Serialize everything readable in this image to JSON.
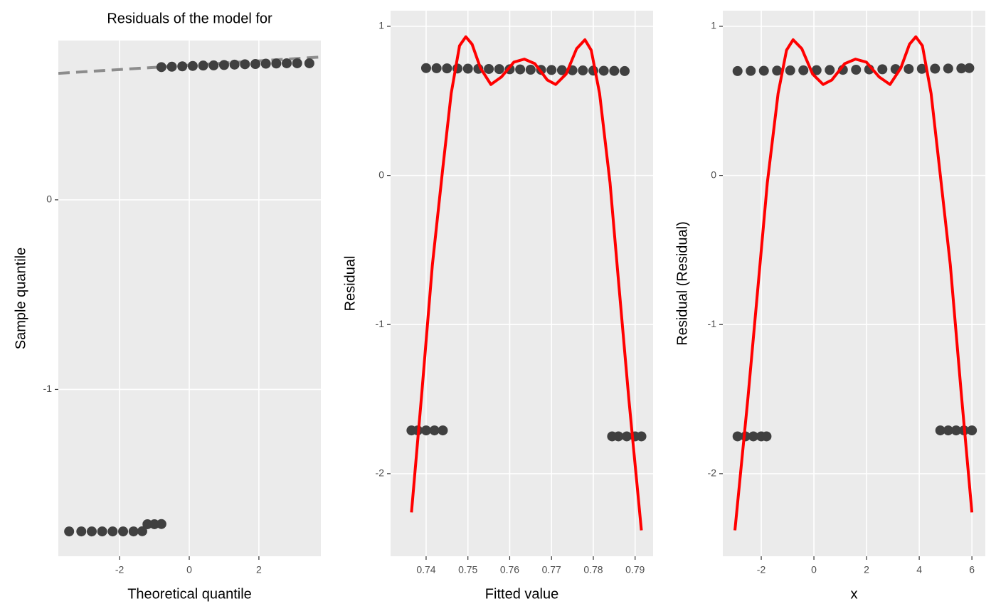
{
  "chart_data": [
    {
      "type": "scatter",
      "title": "Residuals of the model for",
      "x_label": "Theoretical quantile",
      "y_label": "Sample quantile",
      "xlim": [
        -3.76,
        3.78
      ],
      "ylim": [
        -1.88,
        0.84
      ],
      "xticks": [
        -2,
        0,
        2
      ],
      "yticks": [
        0,
        -1
      ],
      "grid": true,
      "series": [
        {
          "type": "line",
          "linestyle": "dashed",
          "color": "#8c8c8c",
          "x": [
            -3.76,
            3.78
          ],
          "values": [
            0.667,
            0.753
          ]
        },
        {
          "type": "scatter",
          "color": "#404040",
          "x": [
            -0.8,
            -0.5,
            -0.2,
            0.1,
            0.4,
            0.7,
            1.0,
            1.3,
            1.6,
            1.9,
            2.2,
            2.5,
            2.8,
            3.1,
            3.45,
            -3.45,
            -3.1,
            -2.8,
            -2.5,
            -2.2,
            -1.9,
            -1.6,
            -1.35,
            -1.2,
            -1.0,
            -0.8
          ],
          "values": [
            0.7,
            0.702,
            0.704,
            0.706,
            0.708,
            0.709,
            0.711,
            0.713,
            0.715,
            0.716,
            0.718,
            0.719,
            0.72,
            0.72,
            0.72,
            -1.749,
            -1.749,
            -1.749,
            -1.749,
            -1.749,
            -1.749,
            -1.749,
            -1.748,
            -1.711,
            -1.711,
            -1.71
          ]
        }
      ]
    },
    {
      "type": "scatter",
      "x_label": "Fitted value",
      "y_label": "Residual",
      "xlim": [
        0.7315,
        0.7943
      ],
      "ylim": [
        -2.554,
        1.105
      ],
      "xticks": [
        0.74,
        0.75,
        0.76,
        0.77,
        0.78,
        0.79
      ],
      "yticks": [
        1,
        0,
        -1,
        -2
      ],
      "grid": true,
      "series": [
        {
          "type": "scatter",
          "color": "#404040",
          "x": [
            0.74,
            0.7425,
            0.745,
            0.7475,
            0.75,
            0.7525,
            0.755,
            0.7575,
            0.76,
            0.7625,
            0.765,
            0.7675,
            0.77,
            0.7725,
            0.775,
            0.7775,
            0.78,
            0.7825,
            0.785,
            0.7875,
            0.7365,
            0.738,
            0.74,
            0.742,
            0.744,
            0.7845,
            0.786,
            0.788,
            0.79,
            0.7915
          ],
          "values": [
            0.72,
            0.719,
            0.718,
            0.717,
            0.716,
            0.715,
            0.714,
            0.713,
            0.712,
            0.711,
            0.709,
            0.708,
            0.707,
            0.706,
            0.705,
            0.704,
            0.703,
            0.702,
            0.701,
            0.7,
            -1.71,
            -1.71,
            -1.71,
            -1.71,
            -1.71,
            -1.75,
            -1.75,
            -1.75,
            -1.75,
            -1.75
          ]
        },
        {
          "type": "line",
          "color": "#ff0000",
          "x": [
            0.7365,
            0.739,
            0.7415,
            0.744,
            0.746,
            0.748,
            0.7495,
            0.751,
            0.753,
            0.7555,
            0.758,
            0.761,
            0.7635,
            0.766,
            0.769,
            0.771,
            0.7735,
            0.776,
            0.778,
            0.7795,
            0.7815,
            0.784,
            0.786,
            0.7885,
            0.7915
          ],
          "values": [
            -2.26,
            -1.45,
            -0.6,
            0.05,
            0.55,
            0.87,
            0.93,
            0.88,
            0.72,
            0.61,
            0.66,
            0.76,
            0.78,
            0.75,
            0.64,
            0.61,
            0.68,
            0.85,
            0.91,
            0.84,
            0.55,
            -0.05,
            -0.7,
            -1.5,
            -2.38
          ]
        }
      ]
    },
    {
      "type": "scatter",
      "x_label": "x",
      "y_label": "Residual (Residual)",
      "xlim": [
        -3.46,
        6.51
      ],
      "ylim": [
        -2.554,
        1.105
      ],
      "xticks": [
        -2,
        0,
        2,
        4,
        6
      ],
      "yticks": [
        1,
        0,
        -1,
        -2
      ],
      "grid": true,
      "series": [
        {
          "type": "scatter",
          "color": "#404040",
          "x": [
            -2.9,
            -2.4,
            -1.9,
            -1.4,
            -0.9,
            -0.4,
            0.1,
            0.6,
            1.1,
            1.6,
            2.1,
            2.6,
            3.1,
            3.6,
            4.1,
            4.6,
            5.1,
            5.6,
            5.9,
            -2.9,
            -2.6,
            -2.3,
            -2.0,
            -1.8,
            4.8,
            5.1,
            5.4,
            5.7,
            6.0
          ],
          "values": [
            0.7,
            0.701,
            0.702,
            0.703,
            0.704,
            0.705,
            0.706,
            0.707,
            0.708,
            0.709,
            0.711,
            0.712,
            0.713,
            0.714,
            0.715,
            0.716,
            0.717,
            0.718,
            0.72,
            -1.75,
            -1.75,
            -1.75,
            -1.75,
            -1.75,
            -1.71,
            -1.71,
            -1.71,
            -1.71,
            -1.71
          ]
        },
        {
          "type": "line",
          "color": "#ff0000",
          "x": [
            -3,
            -2.51,
            -2.1,
            -1.77,
            -1.36,
            -1.04,
            -0.79,
            -0.46,
            -0.05,
            0.35,
            0.68,
            1.17,
            1.58,
            1.99,
            2.48,
            2.89,
            3.3,
            3.63,
            3.87,
            4.12,
            4.45,
            4.77,
            5.18,
            5.59,
            6
          ],
          "values": [
            -2.38,
            -1.5,
            -0.7,
            -0.05,
            0.55,
            0.84,
            0.91,
            0.85,
            0.68,
            0.61,
            0.64,
            0.75,
            0.78,
            0.76,
            0.66,
            0.61,
            0.72,
            0.88,
            0.93,
            0.87,
            0.55,
            0.05,
            -0.6,
            -1.45,
            -2.26
          ]
        }
      ]
    }
  ]
}
